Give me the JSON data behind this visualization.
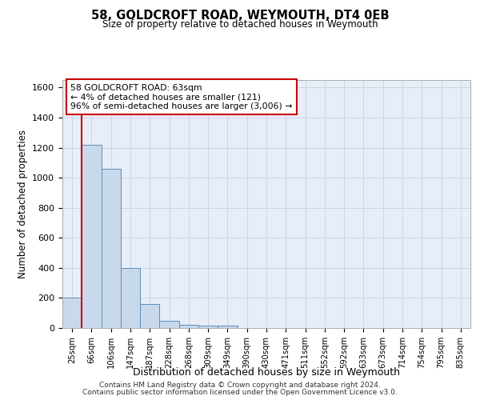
{
  "title": "58, GOLDCROFT ROAD, WEYMOUTH, DT4 0EB",
  "subtitle": "Size of property relative to detached houses in Weymouth",
  "xlabel": "Distribution of detached houses by size in Weymouth",
  "ylabel": "Number of detached properties",
  "categories": [
    "25sqm",
    "66sqm",
    "106sqm",
    "147sqm",
    "187sqm",
    "228sqm",
    "268sqm",
    "309sqm",
    "349sqm",
    "390sqm",
    "430sqm",
    "471sqm",
    "511sqm",
    "552sqm",
    "592sqm",
    "633sqm",
    "673sqm",
    "714sqm",
    "754sqm",
    "795sqm",
    "835sqm"
  ],
  "bar_heights": [
    200,
    1220,
    1060,
    400,
    160,
    50,
    20,
    15,
    15,
    0,
    0,
    0,
    0,
    0,
    0,
    0,
    0,
    0,
    0,
    0,
    0
  ],
  "bar_color": "#c9d9ec",
  "bar_edge_color": "#5b8db8",
  "grid_color": "#c8d0e0",
  "plot_bg_color": "#e8eef8",
  "property_line_x": 1,
  "annotation_text": "58 GOLDCROFT ROAD: 63sqm\n← 4% of detached houses are smaller (121)\n96% of semi-detached houses are larger (3,006) →",
  "annotation_box_color": "#ffffff",
  "annotation_box_edge": "#cc0000",
  "property_line_color": "#cc0000",
  "ylim": [
    0,
    1650
  ],
  "yticks": [
    0,
    200,
    400,
    600,
    800,
    1000,
    1200,
    1400,
    1600
  ],
  "footer1": "Contains HM Land Registry data © Crown copyright and database right 2024.",
  "footer2": "Contains public sector information licensed under the Open Government Licence v3.0.",
  "bg_color": "#ffffff"
}
